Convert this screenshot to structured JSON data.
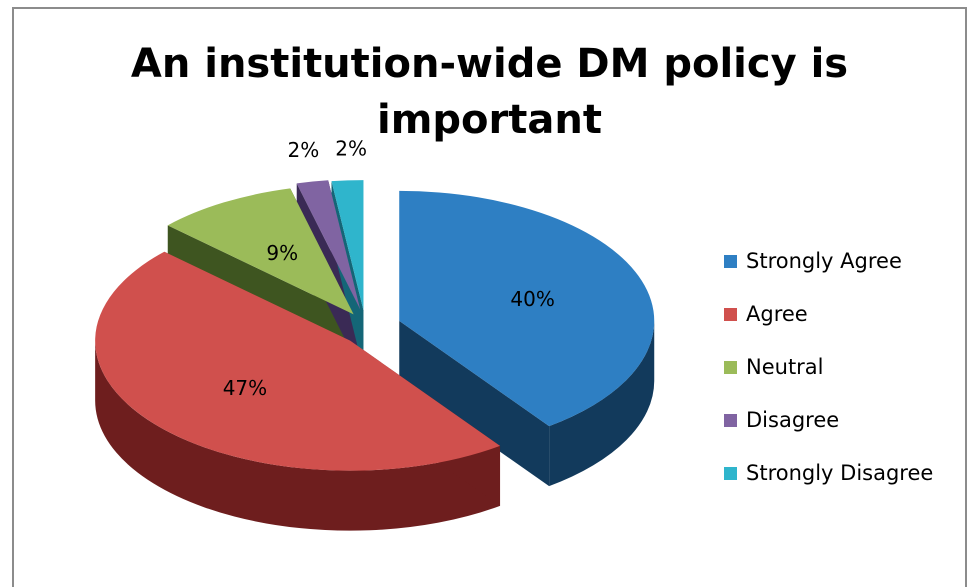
{
  "chart_data": {
    "type": "pie",
    "title": "An institution-wide DM policy is important",
    "legend_position": "right",
    "categories": [
      "Strongly Agree",
      "Agree",
      "Neutral",
      "Disagree",
      "Strongly Disagree"
    ],
    "values": [
      40,
      47,
      9,
      2,
      2
    ],
    "labels": [
      "40%",
      "47%",
      "9%",
      "2%",
      "2%"
    ],
    "colors": [
      "#2e7fc3",
      "#d0504d",
      "#9bbb59",
      "#8064a2",
      "#2fb5cc"
    ],
    "side_colors": [
      "#123a5c",
      "#6e1e1e",
      "#3e5520",
      "#3a2a55",
      "#146677"
    ]
  }
}
